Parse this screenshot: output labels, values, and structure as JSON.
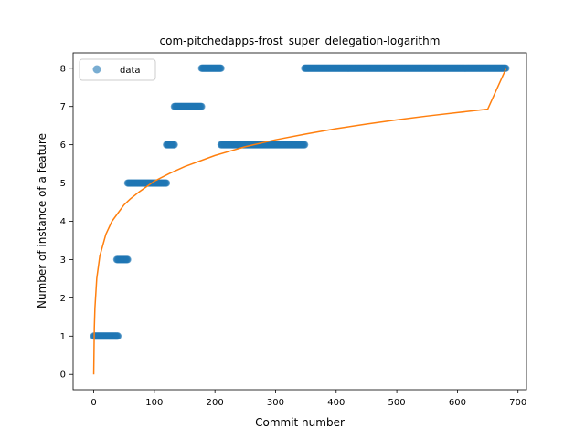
{
  "chart_data": {
    "type": "scatter",
    "title": "com-pitchedapps-frost_super_delegation-logarithm",
    "xlabel": "Commit number",
    "ylabel": "Number of instance of a feature",
    "xlim": [
      -34,
      714
    ],
    "ylim": [
      -0.4,
      8.4
    ],
    "xticks": [
      0,
      100,
      200,
      300,
      400,
      500,
      600,
      700
    ],
    "yticks": [
      0,
      1,
      2,
      3,
      4,
      5,
      6,
      7,
      8
    ],
    "grid": false,
    "legend": {
      "position": "top-left",
      "entries": [
        "data"
      ]
    },
    "colors": {
      "data": "#1f77b4",
      "fit": "#ff7f0e"
    },
    "series": [
      {
        "name": "data",
        "kind": "scatter",
        "segments": [
          {
            "x_start": 0,
            "x_end": 40,
            "y": 1
          },
          {
            "x_start": 38,
            "x_end": 56,
            "y": 3
          },
          {
            "x_start": 56,
            "x_end": 120,
            "y": 5
          },
          {
            "x_start": 120,
            "x_end": 133,
            "y": 6
          },
          {
            "x_start": 133,
            "x_end": 178,
            "y": 7
          },
          {
            "x_start": 178,
            "x_end": 210,
            "y": 8
          },
          {
            "x_start": 210,
            "x_end": 348,
            "y": 6
          },
          {
            "x_start": 348,
            "x_end": 680,
            "y": 8
          }
        ]
      },
      {
        "kind": "line",
        "x": [
          0,
          1,
          2,
          5,
          10,
          20,
          30,
          50,
          60,
          75,
          100,
          125,
          150,
          200,
          250,
          300,
          350,
          400,
          450,
          500,
          550,
          600,
          650,
          680
        ],
        "y": [
          0,
          1.23,
          1.74,
          2.51,
          3.09,
          3.66,
          4.0,
          4.43,
          4.58,
          4.77,
          5.05,
          5.25,
          5.43,
          5.72,
          5.95,
          6.13,
          6.28,
          6.42,
          6.54,
          6.65,
          6.75,
          6.84,
          6.93,
          7.98
        ]
      }
    ]
  }
}
